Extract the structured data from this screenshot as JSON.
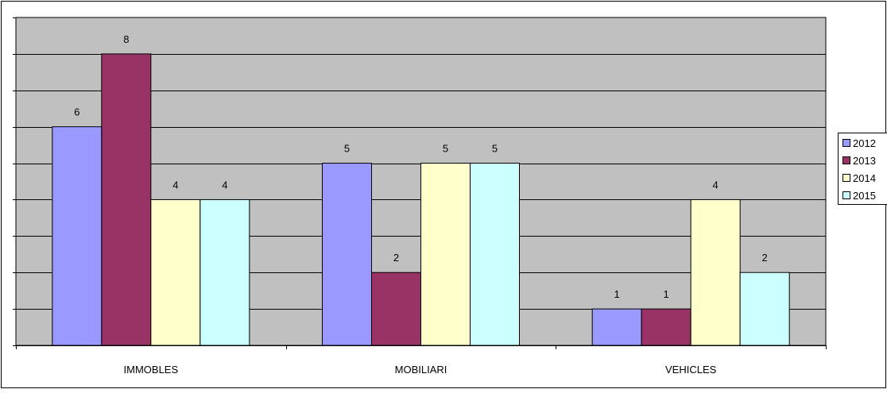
{
  "chart_data": {
    "type": "bar",
    "title": "",
    "xlabel": "",
    "ylabel": "",
    "categories": [
      "IMMOBLES",
      "MOBILIARI",
      "VEHICLES"
    ],
    "series": [
      {
        "name": "2012",
        "values": [
          6,
          5,
          1
        ],
        "color": "#9999ff"
      },
      {
        "name": "2013",
        "values": [
          8,
          2,
          1
        ],
        "color": "#993366"
      },
      {
        "name": "2014",
        "values": [
          4,
          5,
          4
        ],
        "color": "#ffffcc"
      },
      {
        "name": "2015",
        "values": [
          4,
          5,
          2
        ],
        "color": "#ccffff"
      }
    ],
    "ylim": [
      0,
      9
    ],
    "grid": true,
    "data_labels": true,
    "legend_position": "right",
    "plot_background": "#c0c0c0"
  }
}
